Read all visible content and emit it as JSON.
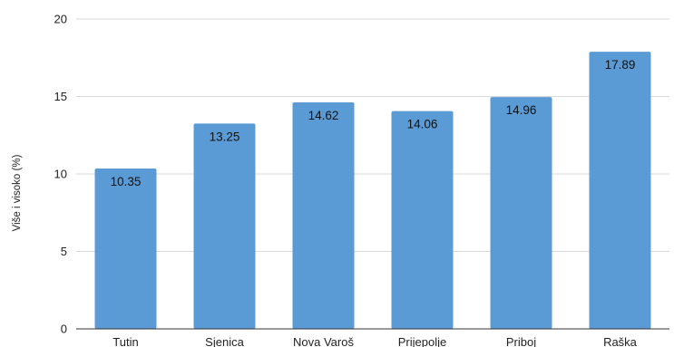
{
  "chart_data": {
    "type": "bar",
    "title": "",
    "xlabel": "",
    "ylabel": "Više i visoko (%)",
    "categories": [
      "Tutin",
      "Sjenica",
      "Nova Varoš",
      "Prijepolje",
      "Priboj",
      "Raška"
    ],
    "values": [
      10.35,
      13.25,
      14.62,
      14.06,
      14.96,
      17.89
    ],
    "value_labels": [
      "10.35",
      "13.25",
      "14.62",
      "14.06",
      "14.96",
      "17.89"
    ],
    "ylim": [
      0,
      20
    ],
    "yticks": [
      0,
      5,
      10,
      15,
      20
    ],
    "ytick_labels": [
      "0",
      "5",
      "10",
      "15",
      "20"
    ],
    "grid": true,
    "legend": "none",
    "colors": {
      "bar": "#5b9bd5",
      "grid": "#d9d9d9",
      "axis": "#333333"
    }
  }
}
